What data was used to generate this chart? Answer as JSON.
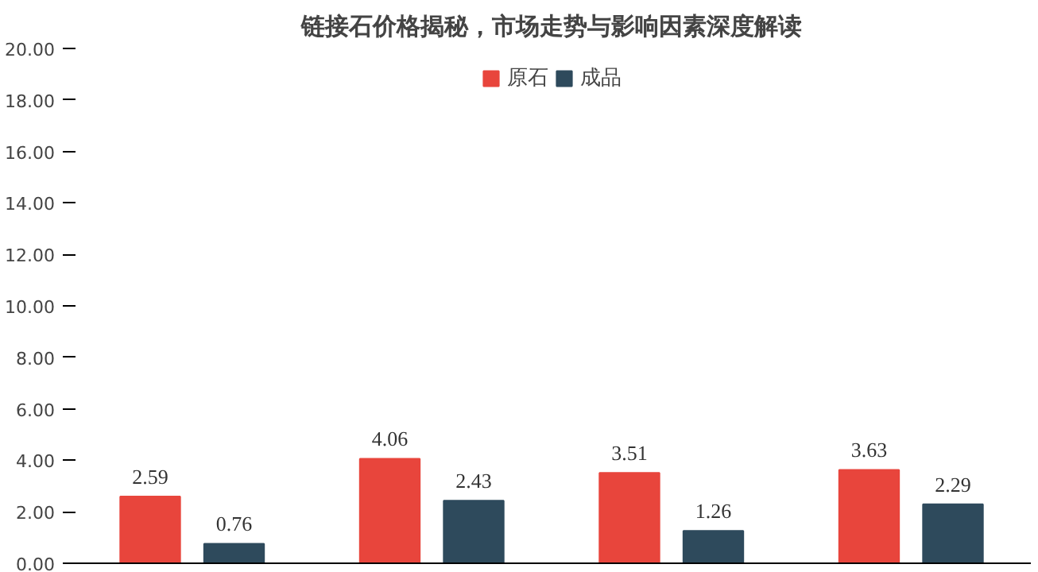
{
  "chart_data": {
    "type": "bar",
    "title": "链接石价格揭秘，市场走势与影响因素深度解读",
    "categories": [
      null,
      null,
      null,
      null
    ],
    "series": [
      {
        "name": "原石",
        "color": "#e8453c",
        "values": [
          2.59,
          4.06,
          3.51,
          3.63
        ]
      },
      {
        "name": "成品",
        "color": "#2e4a5c",
        "values": [
          0.76,
          2.43,
          1.26,
          2.29
        ]
      }
    ],
    "ylim": [
      0,
      20
    ],
    "yticks": [
      {
        "value": 0,
        "label": "0.00"
      },
      {
        "value": 2,
        "label": "2.00"
      },
      {
        "value": 4,
        "label": "4.00"
      },
      {
        "value": 6,
        "label": "6.00"
      },
      {
        "value": 8,
        "label": "8.00"
      },
      {
        "value": 10,
        "label": "10.00"
      },
      {
        "value": 12,
        "label": "12.00"
      },
      {
        "value": 14,
        "label": "14.00"
      },
      {
        "value": 16,
        "label": "16.00"
      },
      {
        "value": 18,
        "label": "18.00"
      },
      {
        "value": 20,
        "label": "20.00"
      }
    ],
    "data_labels": true,
    "legend": "top",
    "grid": false
  }
}
